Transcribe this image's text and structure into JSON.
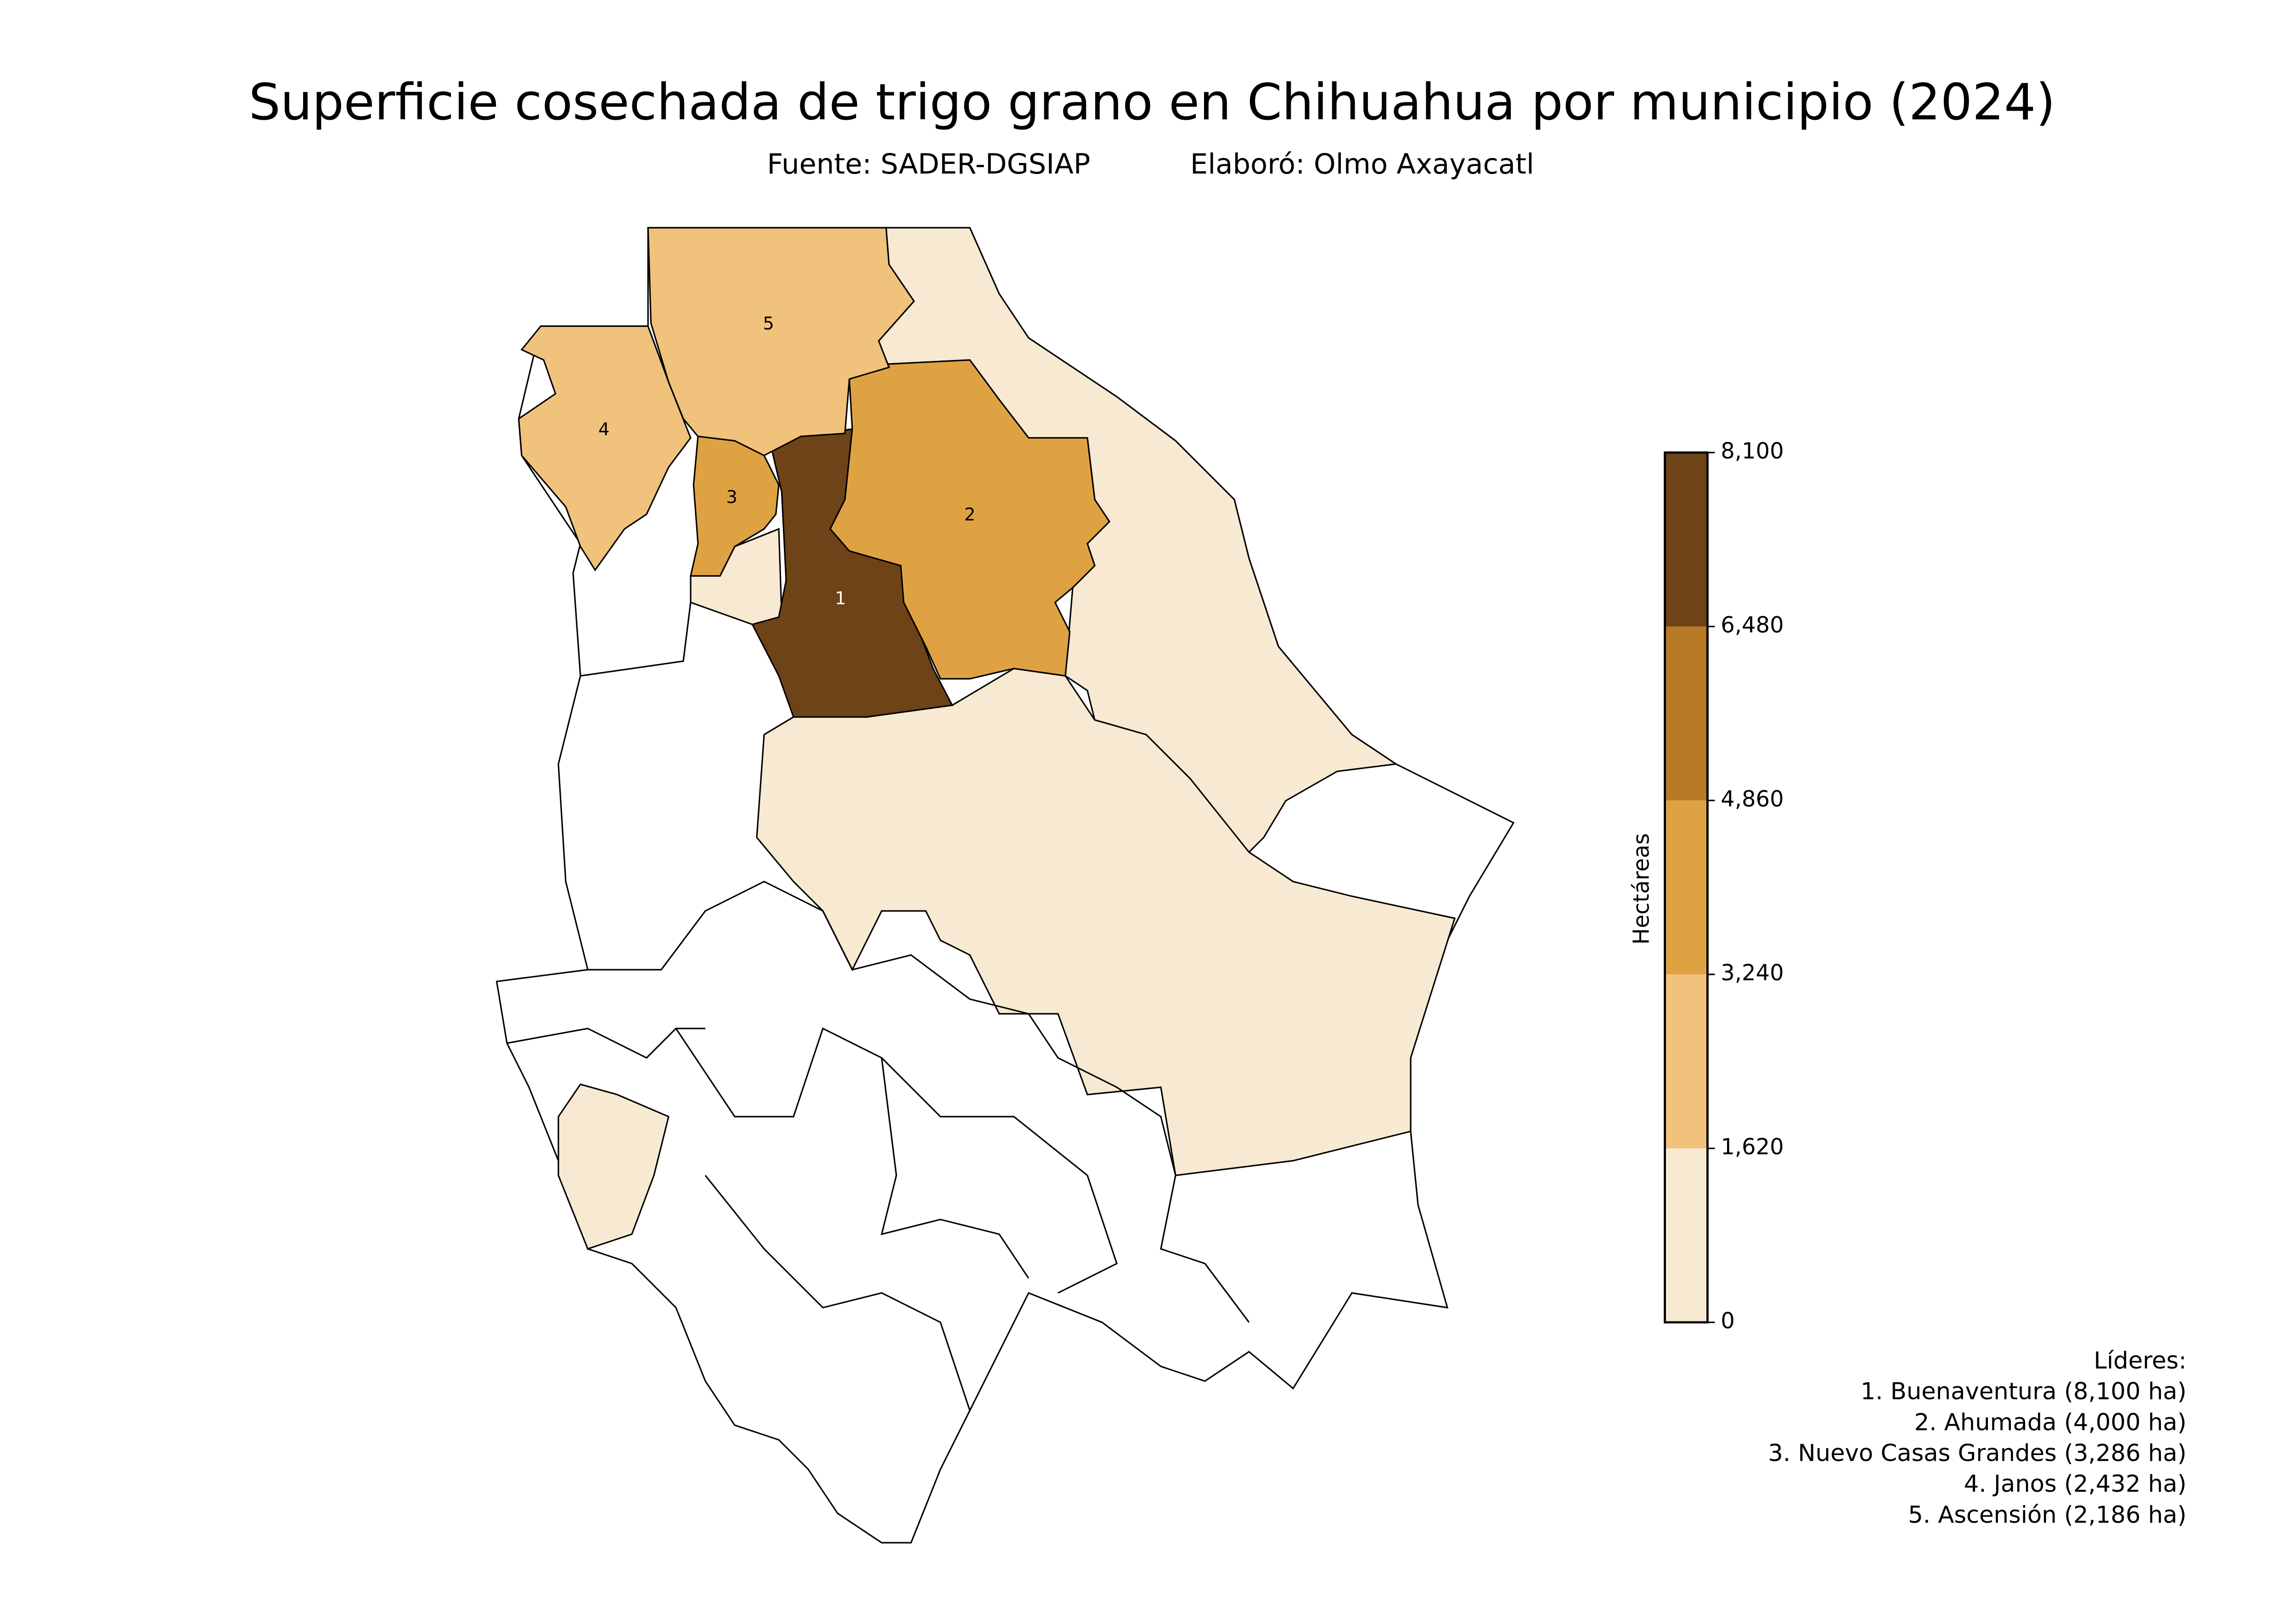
{
  "chart_data": {
    "type": "choropleth",
    "title": "Superficie cosechada de trigo grano en Chihuahua por municipio (2024)",
    "source": "Fuente: SADER-DGSIAP",
    "author": "Elaboró: Olmo Axayacatl",
    "colorbar_label": "Hectáreas",
    "bins": [
      0,
      {
        "value": 1620,
        "label": "1,620"
      },
      {
        "value": 3240,
        "label": "3,240"
      },
      {
        "value": 4860,
        "label": "4,860"
      },
      {
        "value": 6480,
        "label": "6,480"
      },
      {
        "value": 8100,
        "label": "8,100"
      }
    ],
    "colors": [
      "#f8e9d2",
      "#f0c27c",
      "#dfa243",
      "#b87a25",
      "#6e4317"
    ],
    "regions": [
      {
        "label": "1",
        "value": 8100
      },
      {
        "label": "2",
        "value": 4000
      },
      {
        "label": "3",
        "value": 3286
      },
      {
        "label": "4",
        "value": 2432
      },
      {
        "label": "5",
        "value": 2186
      }
    ],
    "leaders_title": "Líderes:",
    "leaders": [
      "1. Buenaventura (8,100 ha)",
      "2. Ahumada (4,000 ha)",
      "3. Nuevo Casas Grandes (3,286 ha)",
      "4. Janos (2,432 ha)",
      "5. Ascensión (2,186 ha)"
    ]
  }
}
